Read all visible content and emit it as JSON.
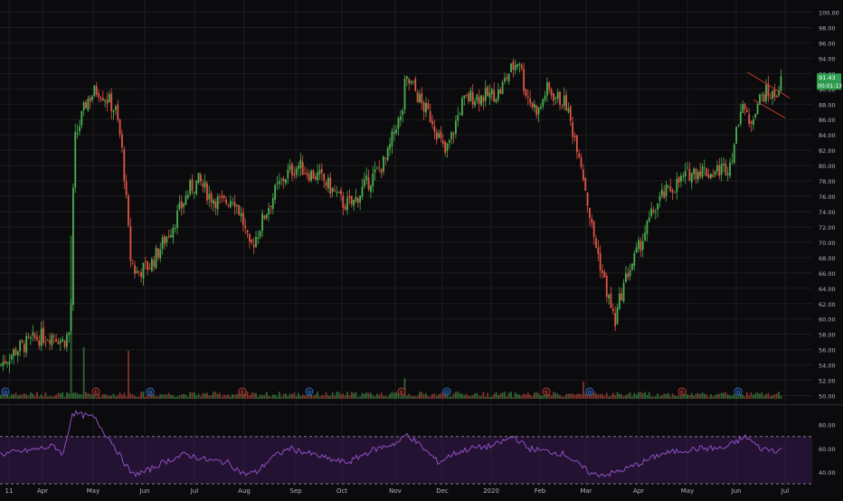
{
  "colors": {
    "background": "#0b0b0d",
    "grid": "#1c1c21",
    "up": "#4caf50",
    "down": "#e05545",
    "axis_text": "#b2b5be",
    "rsi_line": "#8e4fc2",
    "rsi_band": "#3a1a52",
    "rsi_level": "#7a7a86",
    "channel": "#c0392b",
    "last_price_bg": "#2e9e4f",
    "earnings_badge": "#c0392b",
    "dividend_badge": "#2b6fc4"
  },
  "chart_data": [
    {
      "type": "candlestick",
      "panel": "price",
      "x_labels": [
        "11",
        "Apr",
        "May",
        "Jun",
        "Jul",
        "Aug",
        "Sep",
        "Oct",
        "Nov",
        "Dec",
        "2020",
        "Feb",
        "Mar",
        "Apr",
        "May",
        "Jun",
        "Jul"
      ],
      "y_ticks": [
        "50.00",
        "52.00",
        "54.00",
        "56.00",
        "58.00",
        "60.00",
        "62.00",
        "64.00",
        "66.00",
        "68.00",
        "70.00",
        "72.00",
        "74.00",
        "76.00",
        "78.00",
        "80.00",
        "82.00",
        "84.00",
        "86.00",
        "88.00",
        "90.00",
        "92.00",
        "94.00",
        "96.00",
        "98.00",
        "100.00"
      ],
      "ylim": [
        49,
        101
      ],
      "price_path": [
        [
          0,
          54
        ],
        [
          18,
          56
        ],
        [
          40,
          57.5
        ],
        [
          60,
          58
        ],
        [
          70,
          57
        ],
        [
          78,
          58.5
        ],
        [
          82,
          83
        ],
        [
          96,
          88.5
        ],
        [
          108,
          90
        ],
        [
          120,
          88.5
        ],
        [
          128,
          87
        ],
        [
          134,
          83
        ],
        [
          138,
          78
        ],
        [
          144,
          68
        ],
        [
          150,
          66
        ],
        [
          158,
          66.5
        ],
        [
          166,
          67
        ],
        [
          176,
          69
        ],
        [
          190,
          72
        ],
        [
          200,
          74.5
        ],
        [
          210,
          77
        ],
        [
          220,
          78
        ],
        [
          232,
          76
        ],
        [
          246,
          75
        ],
        [
          258,
          76
        ],
        [
          268,
          73
        ],
        [
          276,
          69
        ],
        [
          284,
          71
        ],
        [
          294,
          74
        ],
        [
          306,
          77
        ],
        [
          318,
          79
        ],
        [
          330,
          80
        ],
        [
          342,
          79
        ],
        [
          354,
          78.5
        ],
        [
          366,
          77
        ],
        [
          380,
          75
        ],
        [
          390,
          75
        ],
        [
          404,
          77.5
        ],
        [
          416,
          79
        ],
        [
          428,
          81
        ],
        [
          438,
          85.5
        ],
        [
          444,
          86
        ],
        [
          448,
          91
        ],
        [
          456,
          90.5
        ],
        [
          466,
          88
        ],
        [
          478,
          86
        ],
        [
          492,
          81.5
        ],
        [
          500,
          84
        ],
        [
          510,
          88
        ],
        [
          520,
          89
        ],
        [
          536,
          89
        ],
        [
          552,
          89.5
        ],
        [
          562,
          92
        ],
        [
          574,
          94
        ],
        [
          580,
          90
        ],
        [
          588,
          88
        ],
        [
          596,
          87
        ],
        [
          604,
          90
        ],
        [
          614,
          89
        ],
        [
          626,
          88
        ],
        [
          632,
          85
        ],
        [
          640,
          82
        ],
        [
          646,
          78
        ],
        [
          654,
          72
        ],
        [
          662,
          68
        ],
        [
          672,
          63
        ],
        [
          680,
          59.5
        ],
        [
          686,
          63
        ],
        [
          694,
          66
        ],
        [
          702,
          68
        ],
        [
          712,
          71
        ],
        [
          722,
          74
        ],
        [
          732,
          76
        ],
        [
          742,
          77
        ],
        [
          752,
          78
        ],
        [
          762,
          79
        ],
        [
          774,
          79.5
        ],
        [
          786,
          79
        ],
        [
          796,
          79.5
        ],
        [
          806,
          80
        ],
        [
          814,
          84
        ],
        [
          820,
          89
        ],
        [
          828,
          85
        ],
        [
          836,
          88
        ],
        [
          846,
          89.5
        ],
        [
          856,
          89
        ],
        [
          864,
          91
        ]
      ],
      "volume_spikes": [
        [
          78,
          0.95
        ],
        [
          92,
          0.3
        ],
        [
          142,
          0.28
        ],
        [
          448,
          0.12
        ],
        [
          644,
          0.1
        ]
      ]
    },
    {
      "type": "line",
      "panel": "rsi",
      "y_ticks": [
        "40.00",
        "60.00",
        "80.00"
      ],
      "ylim": [
        30,
        95
      ],
      "levels": [
        70,
        30
      ],
      "rsi_path": [
        [
          0,
          55
        ],
        [
          30,
          58
        ],
        [
          60,
          62
        ],
        [
          70,
          55
        ],
        [
          80,
          90
        ],
        [
          92,
          88
        ],
        [
          104,
          86
        ],
        [
          114,
          75
        ],
        [
          124,
          65
        ],
        [
          134,
          52
        ],
        [
          146,
          38
        ],
        [
          160,
          40
        ],
        [
          180,
          48
        ],
        [
          205,
          55
        ],
        [
          230,
          50
        ],
        [
          252,
          48
        ],
        [
          270,
          38
        ],
        [
          284,
          40
        ],
        [
          300,
          52
        ],
        [
          320,
          60
        ],
        [
          345,
          55
        ],
        [
          368,
          50
        ],
        [
          385,
          48
        ],
        [
          410,
          58
        ],
        [
          440,
          65
        ],
        [
          450,
          72
        ],
        [
          465,
          62
        ],
        [
          485,
          48
        ],
        [
          500,
          55
        ],
        [
          520,
          60
        ],
        [
          545,
          62
        ],
        [
          568,
          70
        ],
        [
          584,
          60
        ],
        [
          600,
          58
        ],
        [
          625,
          55
        ],
        [
          640,
          46
        ],
        [
          655,
          38
        ],
        [
          672,
          38
        ],
        [
          690,
          42
        ],
        [
          710,
          48
        ],
        [
          730,
          55
        ],
        [
          752,
          58
        ],
        [
          775,
          60
        ],
        [
          800,
          60
        ],
        [
          815,
          66
        ],
        [
          825,
          70
        ],
        [
          840,
          60
        ],
        [
          860,
          58
        ],
        [
          865,
          60
        ]
      ]
    }
  ],
  "last_price": {
    "value_label": "91.43",
    "countdown_label": "00:01:13"
  },
  "event_badges": [
    {
      "x": 6,
      "letter": "D",
      "kind": "dividend"
    },
    {
      "x": 106,
      "letter": "E",
      "kind": "earnings"
    },
    {
      "x": 166,
      "letter": "D",
      "kind": "dividend"
    },
    {
      "x": 268,
      "letter": "E",
      "kind": "earnings"
    },
    {
      "x": 342,
      "letter": "D",
      "kind": "dividend"
    },
    {
      "x": 444,
      "letter": "E",
      "kind": "earnings"
    },
    {
      "x": 494,
      "letter": "D",
      "kind": "dividend"
    },
    {
      "x": 604,
      "letter": "E",
      "kind": "earnings"
    },
    {
      "x": 652,
      "letter": "D",
      "kind": "dividend"
    },
    {
      "x": 754,
      "letter": "E",
      "kind": "earnings"
    },
    {
      "x": 816,
      "letter": "D",
      "kind": "dividend"
    }
  ]
}
